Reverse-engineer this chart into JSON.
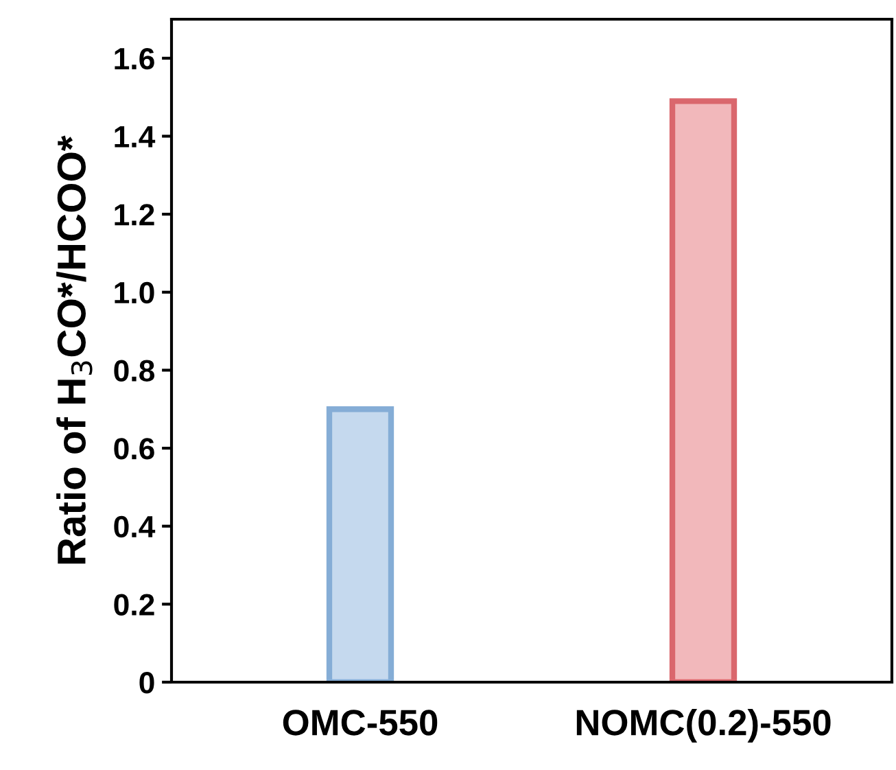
{
  "chart_data": {
    "type": "bar",
    "ylabel": "Ratio of H$_{3}$CO*/HCOO*",
    "categories": [
      "OMC-550",
      "NOMC(0.2)-550"
    ],
    "values": [
      0.7,
      1.49
    ],
    "colors": [
      "#c5d9ee",
      "#f2b8bb"
    ],
    "ylim": [
      0,
      1.7
    ],
    "yticks": [
      0,
      0.2,
      0.4,
      0.6,
      0.8,
      {
        "value": 1,
        "label": "1.0"
      },
      1.2,
      1.4,
      1.6
    ],
    "grid": false,
    "legend": false
  }
}
